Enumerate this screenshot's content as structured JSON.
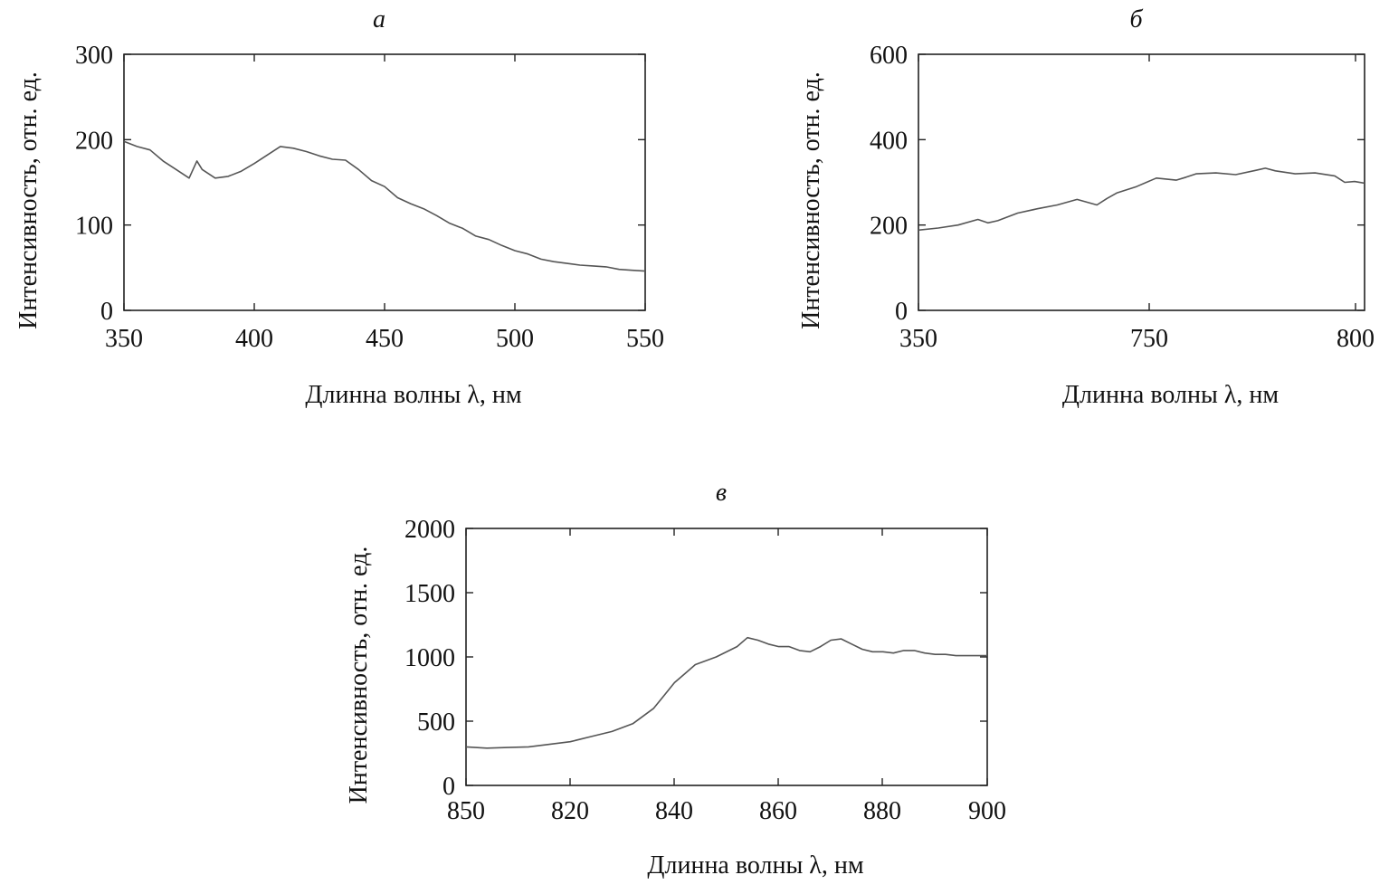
{
  "chart_data": [
    {
      "type": "line",
      "panel_label": "а",
      "xlabel": "Длинна волны λ, нм",
      "ylabel": "Интенсивность, отн. ед.",
      "xlim": [
        350,
        550
      ],
      "ylim": [
        0,
        300
      ],
      "xticks": [
        "350",
        "400",
        "450",
        "500",
        "550"
      ],
      "yticks": [
        "0",
        "100",
        "200",
        "300"
      ],
      "grid": false,
      "series": [
        {
          "color": "#555555",
          "x": [
            350,
            355,
            360,
            365,
            370,
            375,
            378,
            380,
            385,
            390,
            395,
            400,
            405,
            410,
            415,
            420,
            425,
            430,
            435,
            440,
            445,
            450,
            455,
            460,
            465,
            470,
            475,
            480,
            485,
            490,
            495,
            500,
            505,
            510,
            515,
            520,
            525,
            530,
            535,
            540,
            545,
            550
          ],
          "y": [
            198,
            192,
            188,
            175,
            165,
            155,
            175,
            165,
            155,
            157,
            163,
            172,
            182,
            192,
            190,
            186,
            181,
            177,
            176,
            165,
            152,
            145,
            132,
            125,
            119,
            111,
            102,
            96,
            87,
            83,
            76,
            70,
            66,
            60,
            57,
            55,
            53,
            52,
            51,
            48,
            47,
            46
          ]
        }
      ]
    },
    {
      "type": "line",
      "panel_label": "б",
      "xlabel": "Длинна волны λ, нм",
      "ylabel": "Интенсивность, отн. ед.",
      "xlim": [
        350,
        800
      ],
      "ylim": [
        0,
        600
      ],
      "xticks": [
        "350",
        "750",
        "800"
      ],
      "yticks": [
        "0",
        "200",
        "400",
        "600"
      ],
      "grid": false,
      "series": [
        {
          "color": "#555555",
          "x": [
            350,
            370,
            390,
            410,
            420,
            430,
            450,
            470,
            490,
            510,
            530,
            540,
            550,
            570,
            590,
            610,
            620,
            630,
            650,
            670,
            690,
            700,
            710,
            730,
            750,
            770,
            780,
            790,
            800
          ],
          "y": [
            188,
            193,
            200,
            213,
            205,
            210,
            228,
            238,
            247,
            260,
            247,
            262,
            275,
            290,
            310,
            305,
            312,
            320,
            322,
            318,
            328,
            333,
            327,
            320,
            322,
            315,
            300,
            302,
            298
          ]
        }
      ]
    },
    {
      "type": "line",
      "panel_label": "в",
      "xlabel": "Длинна волны λ, нм",
      "ylabel": "Интенсивность, отн. ед.",
      "xlim": [
        800,
        900
      ],
      "ylim": [
        0,
        2000
      ],
      "xticks": [
        "850",
        "820",
        "840",
        "860",
        "880",
        "900"
      ],
      "yticks": [
        "0",
        "500",
        "1000",
        "1500",
        "2000"
      ],
      "grid": false,
      "series": [
        {
          "color": "#555555",
          "x": [
            800,
            804,
            808,
            812,
            816,
            820,
            824,
            828,
            832,
            836,
            838,
            840,
            842,
            844,
            848,
            852,
            854,
            856,
            858,
            860,
            862,
            864,
            866,
            868,
            870,
            872,
            874,
            876,
            878,
            880,
            882,
            884,
            886,
            888,
            890,
            892,
            894,
            896,
            900
          ],
          "y": [
            300,
            290,
            295,
            300,
            320,
            340,
            380,
            420,
            480,
            600,
            700,
            800,
            870,
            940,
            1000,
            1080,
            1150,
            1130,
            1100,
            1080,
            1080,
            1050,
            1040,
            1080,
            1130,
            1140,
            1100,
            1060,
            1040,
            1040,
            1030,
            1050,
            1050,
            1030,
            1020,
            1020,
            1010,
            1010,
            1010
          ]
        }
      ]
    }
  ]
}
